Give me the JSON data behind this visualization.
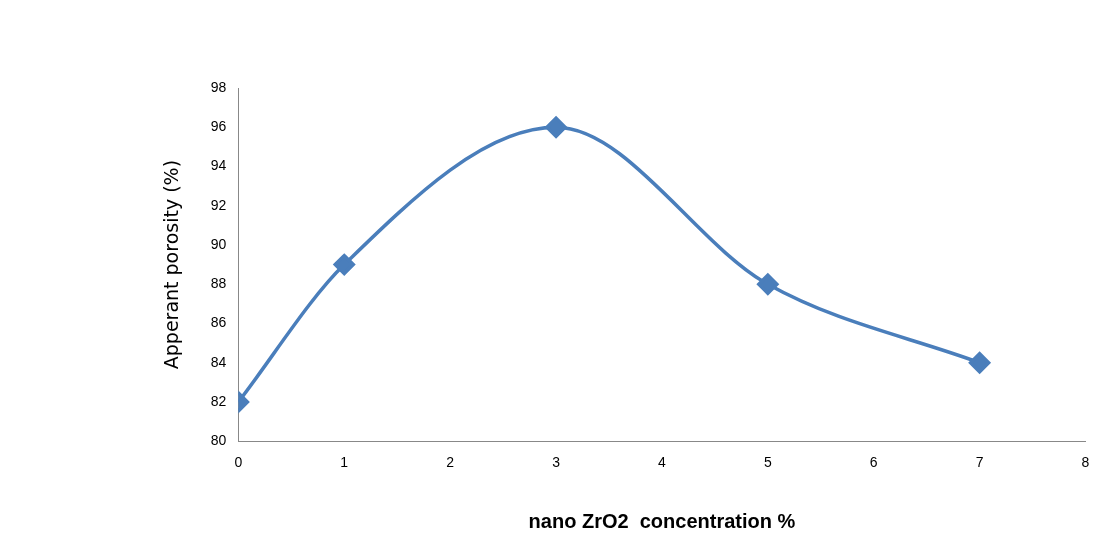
{
  "chart_data": {
    "type": "line",
    "xlabel": "nano ZrO2  concentration %",
    "ylabel": "Apperant porosity (%)",
    "x": [
      0,
      1,
      3,
      5,
      7
    ],
    "series": [
      {
        "color": "#4a7ebb",
        "values": [
          82,
          89,
          96,
          88,
          84
        ]
      }
    ],
    "xlim": [
      0,
      8
    ],
    "xticks": [
      0,
      1,
      2,
      3,
      4,
      5,
      6,
      7,
      8
    ],
    "ylim": [
      80,
      98
    ],
    "yticks": [
      80,
      82,
      84,
      86,
      88,
      90,
      92,
      94,
      96,
      98
    ],
    "grid": false,
    "legend": false,
    "marker": "diamond",
    "line_style": "solid"
  }
}
